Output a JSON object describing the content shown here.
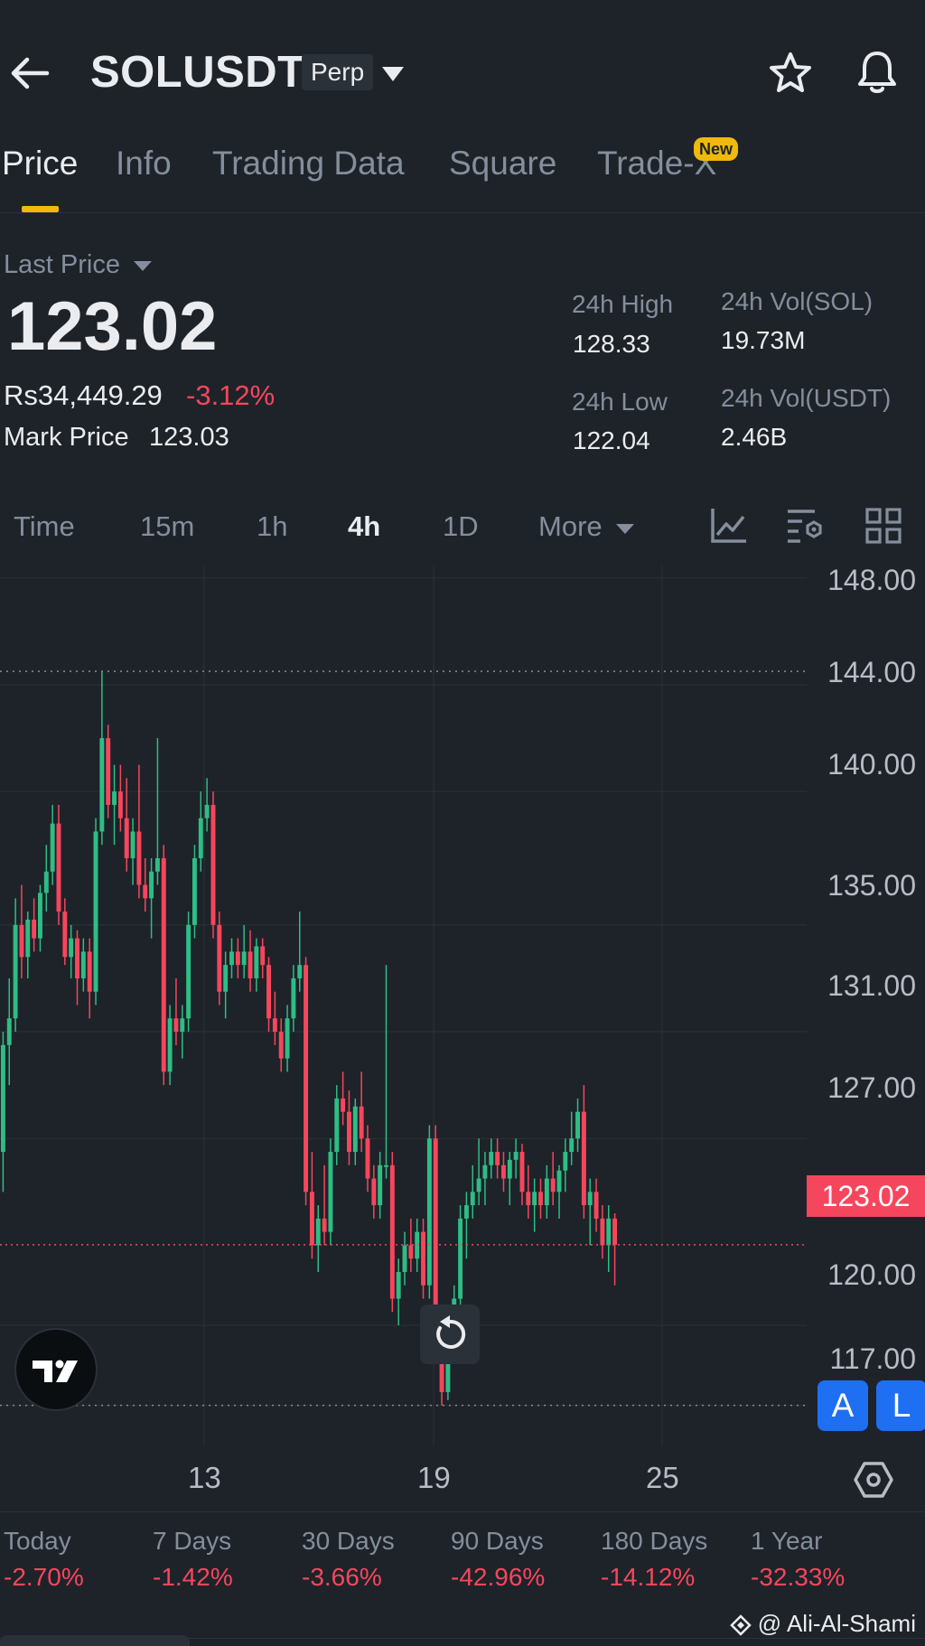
{
  "header": {
    "symbol": "SOLUSDT",
    "contract_type": "Perp"
  },
  "tabs": [
    {
      "label": "Price",
      "active": true
    },
    {
      "label": "Info"
    },
    {
      "label": "Trading Data"
    },
    {
      "label": "Square"
    },
    {
      "label": "Trade-X",
      "badge": "New"
    }
  ],
  "price": {
    "selector_label": "Last Price",
    "last_price": "123.02",
    "local_price": "Rs34,449.29",
    "change_pct": "-3.12%",
    "mark_label": "Mark Price",
    "mark_price": "123.03",
    "high_label": "24h High",
    "high": "128.33",
    "low_label": "24h Low",
    "low": "122.04",
    "vol_base_label": "24h Vol(SOL)",
    "vol_base": "19.73M",
    "vol_quote_label": "24h Vol(USDT)",
    "vol_quote": "2.46B"
  },
  "intervals": [
    {
      "label": "Time"
    },
    {
      "label": "15m"
    },
    {
      "label": "1h"
    },
    {
      "label": "4h",
      "active": true
    },
    {
      "label": "1D"
    },
    {
      "label": "More"
    }
  ],
  "chart": {
    "y_ticks": [
      "148.00",
      "144.00",
      "140.00",
      "135.00",
      "131.00",
      "127.00",
      "120.00",
      "117.00"
    ],
    "last_price_tag": "123.02",
    "x_ticks": [
      "13",
      "19",
      "25"
    ],
    "up_color": "#2ebd85",
    "down_color": "#f6465d",
    "buttons": {
      "a": "A",
      "l": "L"
    }
  },
  "performance": [
    {
      "label": "Today",
      "value": "-2.70%"
    },
    {
      "label": "7 Days",
      "value": "-1.42%"
    },
    {
      "label": "30 Days",
      "value": "-3.66%"
    },
    {
      "label": "90 Days",
      "value": "-42.96%"
    },
    {
      "label": "180 Days",
      "value": "-14.12%"
    },
    {
      "label": "1 Year",
      "value": "-32.33%"
    }
  ],
  "watermark": "@ Ali-Al-Shami",
  "chart_data": {
    "type": "candlestick",
    "ylim": [
      115.5,
      148.5
    ],
    "ohlc": [
      [
        126.5,
        131.0,
        125.0,
        130.5
      ],
      [
        130.5,
        133.0,
        129.0,
        131.5
      ],
      [
        131.5,
        136.0,
        131.0,
        135.0
      ],
      [
        135.0,
        136.5,
        133.0,
        133.8
      ],
      [
        133.8,
        135.5,
        133.0,
        135.2
      ],
      [
        135.2,
        136.0,
        134.0,
        134.5
      ],
      [
        134.5,
        136.5,
        134.0,
        136.2
      ],
      [
        136.2,
        138.0,
        135.5,
        137.0
      ],
      [
        137.0,
        139.5,
        136.5,
        138.8
      ],
      [
        138.8,
        139.5,
        135.0,
        135.5
      ],
      [
        135.5,
        136.0,
        133.5,
        133.8
      ],
      [
        133.8,
        135.0,
        133.0,
        134.5
      ],
      [
        134.5,
        134.8,
        132.0,
        133.0
      ],
      [
        133.0,
        134.5,
        132.5,
        134.0
      ],
      [
        134.0,
        134.5,
        131.5,
        132.5
      ],
      [
        132.5,
        139.0,
        132.0,
        138.5
      ],
      [
        138.5,
        144.5,
        138.0,
        142.0
      ],
      [
        142.0,
        142.5,
        139.0,
        139.5
      ],
      [
        139.5,
        141.0,
        138.0,
        140.0
      ],
      [
        140.0,
        141.0,
        138.5,
        139.0
      ],
      [
        139.0,
        140.5,
        137.0,
        137.5
      ],
      [
        137.5,
        139.0,
        136.5,
        138.5
      ],
      [
        138.5,
        141.0,
        136.0,
        136.5
      ],
      [
        136.5,
        137.5,
        135.5,
        136.0
      ],
      [
        136.0,
        137.5,
        134.5,
        137.0
      ],
      [
        137.0,
        142.0,
        136.5,
        137.5
      ],
      [
        137.5,
        138.0,
        129.0,
        129.5
      ],
      [
        129.5,
        132.0,
        129.0,
        131.5
      ],
      [
        131.5,
        133.0,
        130.5,
        131.0
      ],
      [
        131.0,
        132.0,
        130.0,
        131.5
      ],
      [
        131.5,
        135.5,
        131.0,
        135.0
      ],
      [
        135.0,
        138.0,
        134.5,
        137.5
      ],
      [
        137.5,
        140.0,
        137.0,
        139.0
      ],
      [
        139.0,
        140.5,
        138.5,
        139.5
      ],
      [
        139.5,
        140.0,
        134.5,
        135.0
      ],
      [
        135.0,
        135.5,
        132.0,
        132.5
      ],
      [
        132.5,
        134.0,
        131.5,
        133.5
      ],
      [
        133.5,
        134.5,
        133.0,
        134.0
      ],
      [
        134.0,
        134.5,
        133.0,
        133.5
      ],
      [
        133.5,
        135.0,
        133.0,
        134.0
      ],
      [
        134.0,
        134.8,
        132.5,
        133.0
      ],
      [
        133.0,
        134.5,
        132.5,
        134.2
      ],
      [
        134.2,
        134.5,
        133.0,
        133.5
      ],
      [
        133.5,
        133.8,
        131.0,
        131.5
      ],
      [
        131.5,
        132.5,
        130.5,
        131.0
      ],
      [
        131.0,
        131.5,
        129.5,
        130.0
      ],
      [
        130.0,
        132.0,
        129.5,
        131.5
      ],
      [
        131.5,
        133.5,
        131.0,
        133.0
      ],
      [
        133.0,
        135.5,
        132.5,
        133.5
      ],
      [
        133.5,
        133.8,
        124.5,
        125.0
      ],
      [
        125.0,
        126.5,
        122.5,
        123.0
      ],
      [
        123.0,
        124.5,
        122.0,
        124.0
      ],
      [
        124.0,
        126.0,
        123.0,
        123.5
      ],
      [
        123.5,
        127.0,
        123.0,
        126.5
      ],
      [
        126.5,
        129.0,
        126.0,
        128.5
      ],
      [
        128.5,
        129.5,
        127.5,
        128.0
      ],
      [
        128.0,
        128.8,
        126.0,
        126.5
      ],
      [
        126.5,
        128.5,
        126.0,
        128.2
      ],
      [
        128.2,
        129.5,
        126.5,
        127.0
      ],
      [
        127.0,
        127.5,
        125.0,
        125.5
      ],
      [
        125.5,
        126.0,
        124.0,
        124.5
      ],
      [
        124.5,
        126.5,
        124.0,
        126.0
      ],
      [
        126.0,
        133.5,
        125.5,
        126.0
      ],
      [
        126.0,
        126.5,
        120.5,
        121.0
      ],
      [
        121.0,
        122.5,
        120.0,
        122.0
      ],
      [
        122.0,
        123.5,
        121.5,
        123.0
      ],
      [
        123.0,
        124.0,
        122.0,
        122.5
      ],
      [
        122.5,
        124.0,
        122.0,
        123.5
      ],
      [
        123.5,
        124.0,
        121.0,
        121.5
      ],
      [
        121.5,
        127.5,
        121.0,
        127.0
      ],
      [
        127.0,
        127.5,
        119.0,
        119.5
      ],
      [
        119.5,
        120.0,
        117.0,
        117.5
      ],
      [
        117.5,
        120.5,
        117.2,
        120.0
      ],
      [
        120.0,
        121.5,
        119.5,
        121.0
      ],
      [
        121.0,
        124.5,
        120.5,
        124.0
      ],
      [
        124.0,
        125.0,
        122.5,
        124.5
      ],
      [
        124.5,
        126.0,
        124.0,
        125.0
      ],
      [
        125.0,
        127.0,
        124.5,
        125.5
      ],
      [
        125.5,
        126.5,
        124.5,
        126.0
      ],
      [
        126.0,
        127.0,
        125.5,
        126.5
      ],
      [
        126.5,
        127.0,
        125.5,
        126.0
      ],
      [
        126.0,
        126.5,
        125.0,
        125.5
      ],
      [
        125.5,
        126.5,
        124.5,
        126.2
      ],
      [
        126.2,
        127.0,
        125.5,
        126.5
      ],
      [
        126.5,
        126.8,
        124.5,
        125.0
      ],
      [
        125.0,
        126.0,
        124.0,
        124.5
      ],
      [
        124.5,
        125.5,
        123.5,
        125.0
      ],
      [
        125.0,
        125.5,
        124.0,
        124.5
      ],
      [
        124.5,
        126.0,
        124.0,
        125.5
      ],
      [
        125.5,
        126.5,
        124.5,
        125.0
      ],
      [
        125.0,
        126.0,
        124.0,
        125.8
      ],
      [
        125.8,
        127.0,
        125.0,
        126.5
      ],
      [
        126.5,
        128.0,
        126.0,
        127.0
      ],
      [
        127.0,
        128.5,
        126.5,
        128.0
      ],
      [
        128.0,
        129.0,
        124.0,
        124.5
      ],
      [
        124.5,
        125.5,
        123.0,
        125.0
      ],
      [
        125.0,
        125.5,
        123.5,
        124.0
      ],
      [
        124.0,
        124.5,
        122.5,
        123.0
      ],
      [
        123.0,
        124.5,
        122.0,
        124.0
      ],
      [
        124.0,
        124.2,
        121.5,
        123.02
      ]
    ]
  }
}
